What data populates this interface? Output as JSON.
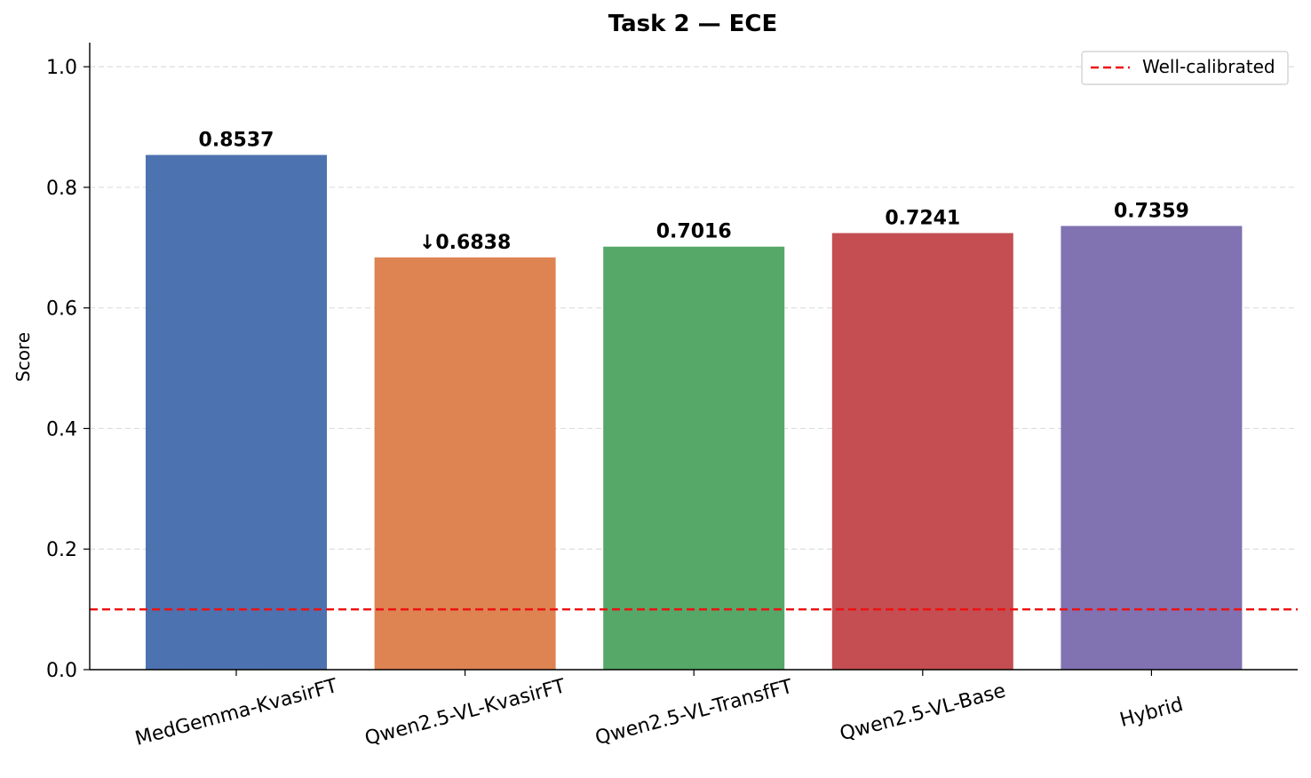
{
  "chart_data": {
    "type": "bar",
    "title": "Task 2 — ECE",
    "xlabel": "",
    "ylabel": "Score",
    "ylim": [
      0,
      1.04
    ],
    "yticks": [
      0.0,
      0.2,
      0.4,
      0.6,
      0.8,
      1.0
    ],
    "ytick_labels": [
      "0.0",
      "0.2",
      "0.4",
      "0.6",
      "0.8",
      "1.0"
    ],
    "categories": [
      "MedGemma-KvasirFT",
      "Qwen2.5-VL-KvasirFT",
      "Qwen2.5-VL-TransfFT",
      "Qwen2.5-VL-Base",
      "Hybrid"
    ],
    "values": [
      0.8537,
      0.6838,
      0.7016,
      0.7241,
      0.7359
    ],
    "value_labels": [
      "0.8537",
      "↓0.6838",
      "0.7016",
      "0.7241",
      "0.7359"
    ],
    "colors": [
      "#4c72b0",
      "#dd8452",
      "#55a868",
      "#c44e52",
      "#8172b2"
    ],
    "reference_line": {
      "value": 0.1,
      "label": "Well-calibrated",
      "color": "#ee1111",
      "style": "dashed"
    },
    "grid": "y-dashed",
    "legend_position": "top-right"
  }
}
